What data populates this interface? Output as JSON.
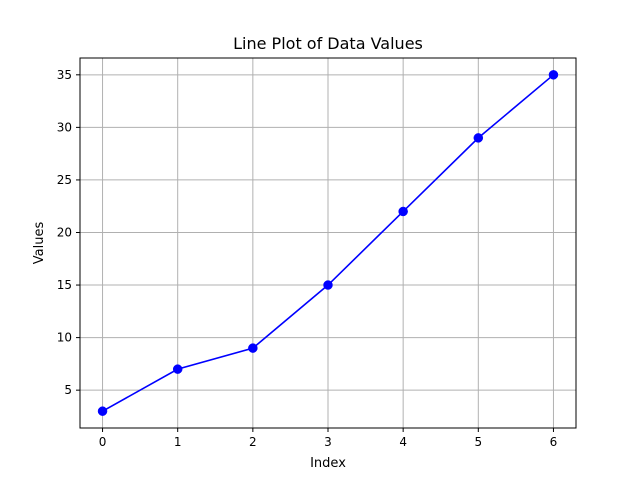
{
  "chart_data": {
    "type": "line",
    "title": "Line Plot of Data Values",
    "xlabel": "Index",
    "ylabel": "Values",
    "x": [
      0,
      1,
      2,
      3,
      4,
      5,
      6
    ],
    "series": [
      {
        "values": [
          3,
          7,
          9,
          15,
          22,
          29,
          35
        ],
        "color": "#0000ff",
        "marker": "circle"
      }
    ],
    "xticks": [
      0,
      1,
      2,
      3,
      4,
      5,
      6
    ],
    "yticks": [
      5,
      10,
      15,
      20,
      25,
      30,
      35
    ],
    "xlim": [
      -0.3,
      6.3
    ],
    "ylim": [
      1.4,
      36.6
    ],
    "grid": true,
    "colors": {
      "grid": "#b0b0b0",
      "axes": "#000000",
      "background": "#ffffff"
    }
  }
}
